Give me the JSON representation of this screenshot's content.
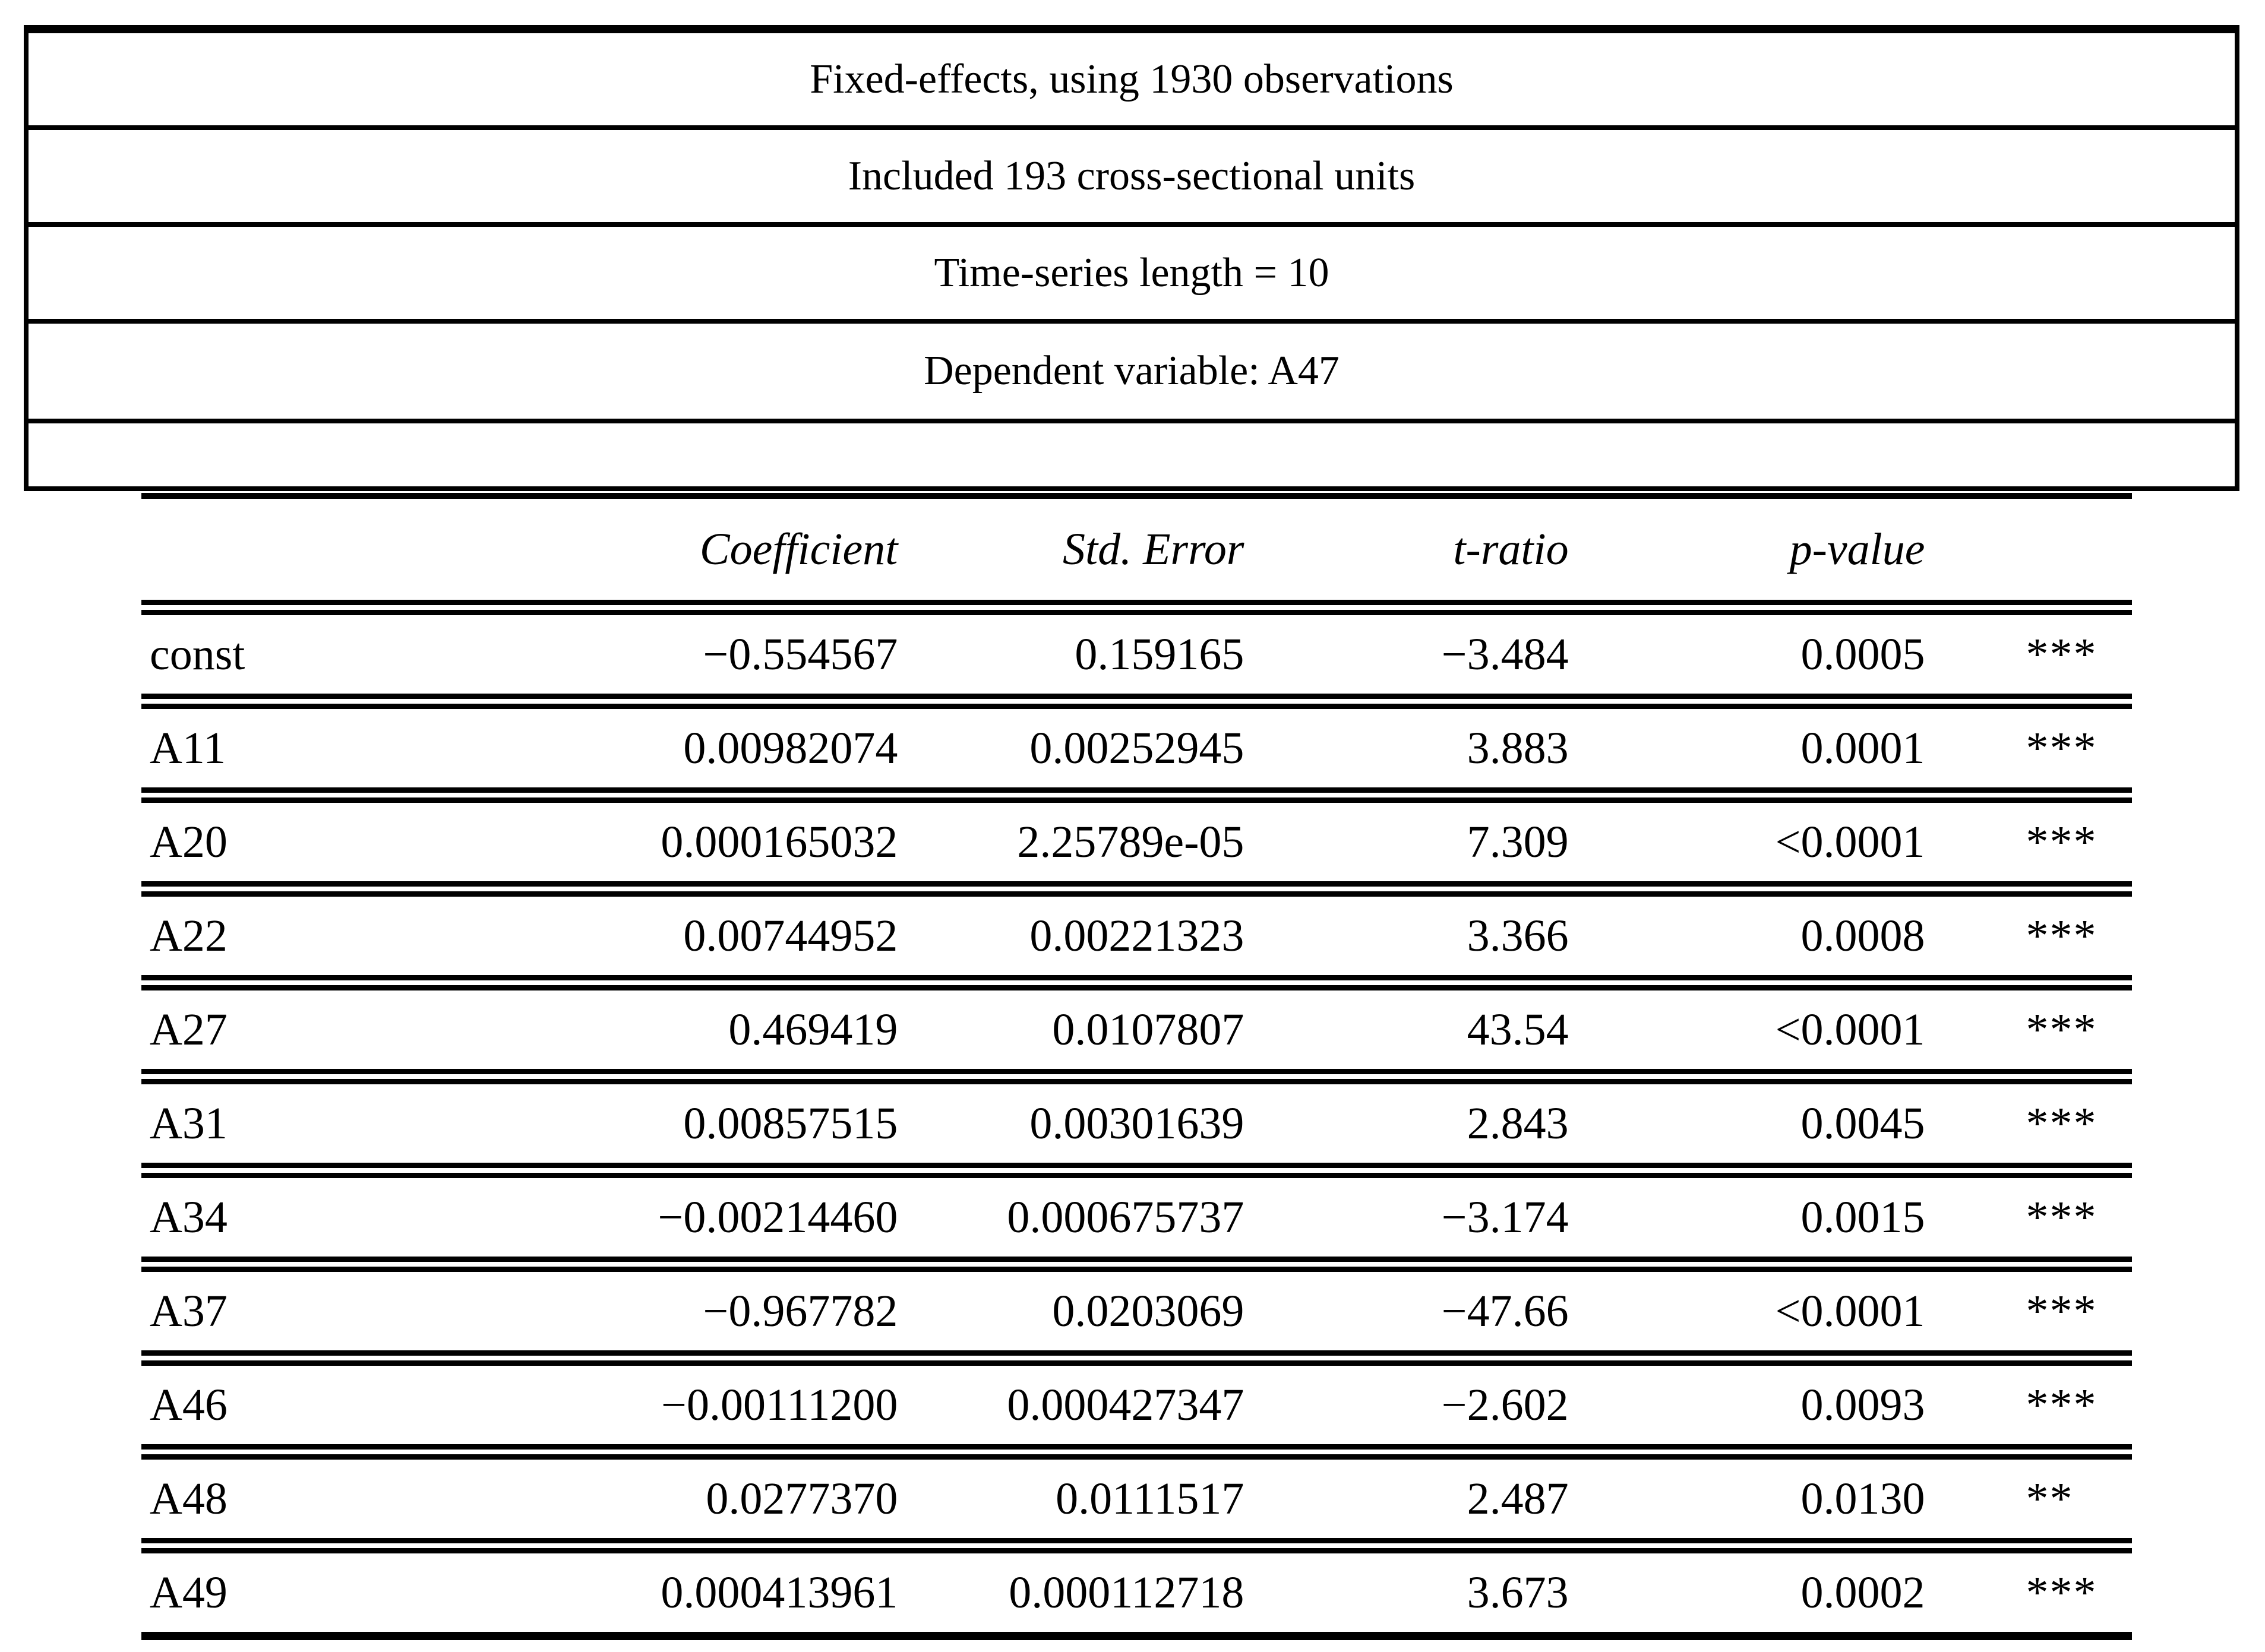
{
  "header_box": {
    "rows": [
      "Fixed-effects, using 1930 observations",
      "Included 193 cross-sectional units",
      "Time-series length = 10",
      "Dependent variable: A47",
      ""
    ]
  },
  "results_table": {
    "column_headers": {
      "coefficient": "Coefficient",
      "std_error": "Std. Error",
      "t_ratio": "t-ratio",
      "p_value": "p-value"
    },
    "rows": [
      {
        "name": "const",
        "coefficient": "−0.554567",
        "std_error": "0.159165",
        "t_ratio": "−3.484",
        "p_value": "0.0005",
        "significance": "***"
      },
      {
        "name": "A11",
        "coefficient": "0.00982074",
        "std_error": "0.00252945",
        "t_ratio": "3.883",
        "p_value": "0.0001",
        "significance": "***"
      },
      {
        "name": "A20",
        "coefficient": "0.000165032",
        "std_error": "2.25789e-05",
        "t_ratio": "7.309",
        "p_value": "<0.0001",
        "significance": "***"
      },
      {
        "name": "A22",
        "coefficient": "0.00744952",
        "std_error": "0.00221323",
        "t_ratio": "3.366",
        "p_value": "0.0008",
        "significance": "***"
      },
      {
        "name": "A27",
        "coefficient": "0.469419",
        "std_error": "0.0107807",
        "t_ratio": "43.54",
        "p_value": "<0.0001",
        "significance": "***"
      },
      {
        "name": "A31",
        "coefficient": "0.00857515",
        "std_error": "0.00301639",
        "t_ratio": "2.843",
        "p_value": "0.0045",
        "significance": "***"
      },
      {
        "name": "A34",
        "coefficient": "−0.00214460",
        "std_error": "0.000675737",
        "t_ratio": "−3.174",
        "p_value": "0.0015",
        "significance": "***"
      },
      {
        "name": "A37",
        "coefficient": "−0.967782",
        "std_error": "0.0203069",
        "t_ratio": "−47.66",
        "p_value": "<0.0001",
        "significance": "***"
      },
      {
        "name": "A46",
        "coefficient": "−0.00111200",
        "std_error": "0.000427347",
        "t_ratio": "−2.602",
        "p_value": "0.0093",
        "significance": "***"
      },
      {
        "name": "A48",
        "coefficient": "0.0277370",
        "std_error": "0.0111517",
        "t_ratio": "2.487",
        "p_value": "0.0130",
        "significance": "**"
      },
      {
        "name": "A49",
        "coefficient": "0.000413961",
        "std_error": "0.000112718",
        "t_ratio": "3.673",
        "p_value": "0.0002",
        "significance": "***"
      }
    ]
  }
}
